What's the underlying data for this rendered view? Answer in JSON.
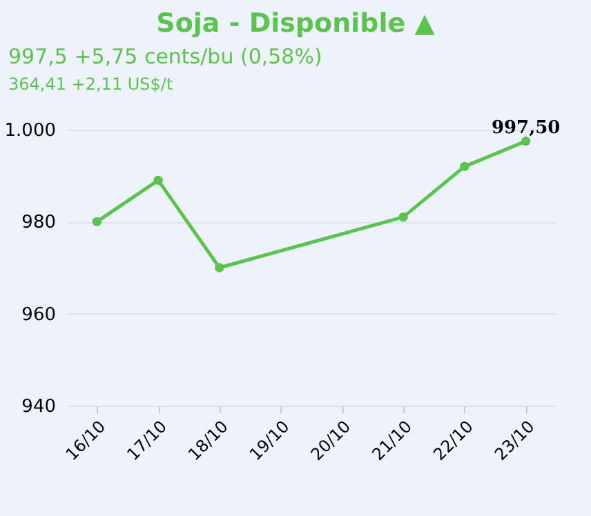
{
  "chart_data": {
    "type": "line",
    "title": "Soja - Disponible ▲",
    "subtitle": "997,5 +5,75 cents/bu (0,58%)",
    "annotations": [
      "364,41 +2,11 US$/t"
    ],
    "categories": [
      "16/10",
      "17/10",
      "18/10",
      "19/10",
      "20/10",
      "21/10",
      "22/10",
      "23/10"
    ],
    "series": [
      {
        "color": "#5cc350",
        "values": [
          980,
          989,
          970,
          null,
          null,
          981,
          992,
          997.5
        ],
        "value_labels": [
          null,
          null,
          null,
          null,
          null,
          null,
          null,
          "997,50"
        ]
      }
    ],
    "ylim": [
      940,
      1000
    ],
    "yticks": [
      940,
      960,
      980,
      {
        "value": 1000,
        "label": "1.000"
      }
    ],
    "grid": "y",
    "marker": "circle",
    "line_style": "solid"
  }
}
